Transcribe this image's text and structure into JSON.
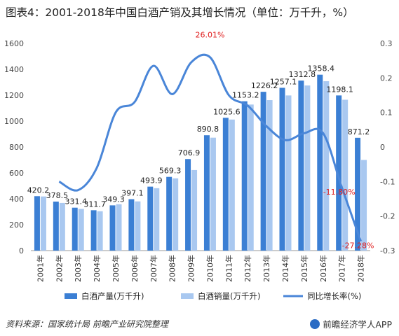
{
  "title": "图表4：2001-2018年中国白酒产销及其增长情况（单位：万千升，%）",
  "source": "资料来源：国家统计局 前瞻产业研究院整理",
  "brand": "前瞻经济学人APP",
  "colors": {
    "production": "#3b7fd4",
    "sales": "#a9c8f0",
    "growth": "#4a86d8",
    "label_negative": "#e02020",
    "label_peak": "#e02020"
  },
  "chart_data": {
    "type": "bar",
    "categories": [
      "2001年",
      "2002年",
      "2003年",
      "2004年",
      "2005年",
      "2006年",
      "2007年",
      "2008年",
      "2009年",
      "2010年",
      "2011年",
      "2012年",
      "2013年",
      "2014年",
      "2015年",
      "2016年",
      "2017年",
      "2018年"
    ],
    "series": [
      {
        "name": "白酒产量(万千升)",
        "type": "bar",
        "axis": "left",
        "values": [
          420.2,
          378.5,
          331.4,
          311.7,
          349.3,
          397.1,
          493.9,
          569.3,
          706.9,
          890.8,
          1025.6,
          1153.2,
          1226.2,
          1257.1,
          1312.8,
          1358.4,
          1198.1,
          871.2
        ],
        "labels": [
          "420.2",
          "378.5",
          "331.4",
          "311.7",
          "349.3",
          "397.1",
          "493.9",
          "569.3",
          "706.9",
          "890.8",
          "1025.6",
          "1153.2",
          "1226.2",
          "1257.1",
          "1312.8",
          "1358.4",
          "1198.1",
          "871.2"
        ]
      },
      {
        "name": "白酒销量(万千升)",
        "type": "bar",
        "axis": "left",
        "values": [
          418,
          368,
          322,
          304,
          358,
          380,
          482,
          558,
          622,
          872,
          1012,
          1128,
          1162,
          1198,
          1275,
          1308,
          1165,
          700
        ]
      },
      {
        "name": "同比增长率(%)",
        "type": "line",
        "axis": "right",
        "values": [
          null,
          -0.1,
          -0.125,
          -0.06,
          0.1,
          0.13,
          0.235,
          0.153,
          0.245,
          0.2601,
          0.15,
          0.12,
          0.06,
          0.02,
          0.04,
          0.04,
          -0.118,
          -0.2728
        ]
      }
    ],
    "annotations": [
      {
        "index": 9,
        "text": "26.01%"
      },
      {
        "index": 16,
        "text": "-11.80%"
      },
      {
        "index": 17,
        "text": "-27.28%"
      }
    ],
    "ylim_left": [
      0,
      1600
    ],
    "yticks_left": [
      0,
      200,
      400,
      600,
      800,
      1000,
      1200,
      1400,
      1600
    ],
    "ylim_right": [
      -0.3,
      0.3
    ],
    "yticks_right": [
      "-0.3",
      "-0.2",
      "-0.1",
      "0",
      "0.1",
      "0.2",
      "0.3"
    ],
    "grid": false,
    "legend_position": "bottom"
  }
}
